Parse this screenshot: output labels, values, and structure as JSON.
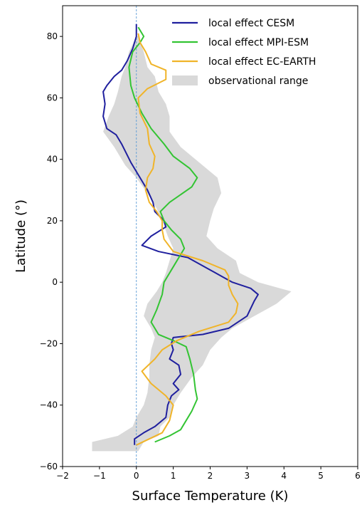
{
  "chart_data": {
    "type": "line",
    "xlabel": "Surface Temperature (K)",
    "ylabel": "Latitude (°)",
    "xlim": [
      -2,
      6
    ],
    "ylim": [
      -60,
      90
    ],
    "xticks": [
      -2,
      -1,
      0,
      1,
      2,
      3,
      4,
      5,
      6
    ],
    "yticks": [
      -60,
      -40,
      -20,
      0,
      20,
      40,
      60,
      80
    ],
    "grid": false,
    "legend_position": "top-right",
    "reference_line": {
      "x": 0,
      "style": "dashed",
      "color": "#5b9bd5"
    },
    "series": [
      {
        "name": "local effect CESM",
        "color": "#1f1f9e",
        "points": [
          [
            -0.05,
            -53
          ],
          [
            -0.05,
            -51
          ],
          [
            0.2,
            -49
          ],
          [
            0.5,
            -47
          ],
          [
            0.8,
            -44
          ],
          [
            0.85,
            -40
          ],
          [
            0.95,
            -37
          ],
          [
            1.15,
            -35
          ],
          [
            1.0,
            -33
          ],
          [
            1.2,
            -30
          ],
          [
            1.15,
            -27
          ],
          [
            0.9,
            -25
          ],
          [
            1.0,
            -22
          ],
          [
            0.95,
            -20
          ],
          [
            1.0,
            -18
          ],
          [
            1.8,
            -17
          ],
          [
            2.5,
            -15
          ],
          [
            3.0,
            -11
          ],
          [
            3.2,
            -6
          ],
          [
            3.3,
            -4
          ],
          [
            3.1,
            -2
          ],
          [
            2.6,
            0
          ],
          [
            2.3,
            2
          ],
          [
            2.0,
            4
          ],
          [
            1.4,
            8
          ],
          [
            0.6,
            10
          ],
          [
            0.15,
            12
          ],
          [
            0.4,
            15
          ],
          [
            0.8,
            18
          ],
          [
            0.75,
            20
          ],
          [
            0.5,
            23
          ],
          [
            0.45,
            26
          ],
          [
            0.3,
            30
          ],
          [
            0.05,
            35
          ],
          [
            -0.15,
            39
          ],
          [
            -0.4,
            45
          ],
          [
            -0.55,
            48
          ],
          [
            -0.8,
            50
          ],
          [
            -0.9,
            54
          ],
          [
            -0.85,
            58
          ],
          [
            -0.9,
            62
          ],
          [
            -0.8,
            64
          ],
          [
            -0.6,
            67
          ],
          [
            -0.4,
            69
          ],
          [
            -0.25,
            72
          ],
          [
            -0.1,
            76
          ],
          [
            0.0,
            80
          ],
          [
            0.0,
            84
          ]
        ]
      },
      {
        "name": "local effect MPI-ESM",
        "color": "#33c433",
        "points": [
          [
            0.5,
            -52
          ],
          [
            0.9,
            -50
          ],
          [
            1.2,
            -48
          ],
          [
            1.35,
            -45
          ],
          [
            1.5,
            -42
          ],
          [
            1.65,
            -38
          ],
          [
            1.6,
            -35
          ],
          [
            1.55,
            -30
          ],
          [
            1.45,
            -25
          ],
          [
            1.35,
            -21
          ],
          [
            1.0,
            -19
          ],
          [
            0.6,
            -17
          ],
          [
            0.4,
            -13
          ],
          [
            0.55,
            -9
          ],
          [
            0.7,
            -4
          ],
          [
            0.75,
            0
          ],
          [
            0.95,
            4
          ],
          [
            1.15,
            8
          ],
          [
            1.3,
            11
          ],
          [
            1.2,
            14
          ],
          [
            0.95,
            17
          ],
          [
            0.75,
            20
          ],
          [
            0.65,
            23
          ],
          [
            0.9,
            26
          ],
          [
            1.5,
            31
          ],
          [
            1.65,
            34
          ],
          [
            1.45,
            37
          ],
          [
            1.0,
            41
          ],
          [
            0.75,
            45
          ],
          [
            0.4,
            50
          ],
          [
            0.15,
            55
          ],
          [
            -0.05,
            60
          ],
          [
            -0.15,
            64
          ],
          [
            -0.2,
            70
          ],
          [
            -0.1,
            75
          ],
          [
            0.1,
            78
          ],
          [
            0.2,
            80
          ],
          [
            0.05,
            83
          ]
        ]
      },
      {
        "name": "local effect EC-EARTH",
        "color": "#f0b429",
        "points": [
          [
            0.0,
            -53
          ],
          [
            0.35,
            -51
          ],
          [
            0.7,
            -49
          ],
          [
            0.9,
            -45
          ],
          [
            1.0,
            -40
          ],
          [
            0.8,
            -37
          ],
          [
            0.4,
            -33
          ],
          [
            0.15,
            -29
          ],
          [
            0.5,
            -25
          ],
          [
            0.7,
            -22
          ],
          [
            1.1,
            -19
          ],
          [
            1.7,
            -16
          ],
          [
            2.5,
            -13
          ],
          [
            2.7,
            -10
          ],
          [
            2.75,
            -7
          ],
          [
            2.6,
            -4
          ],
          [
            2.5,
            -1
          ],
          [
            2.5,
            2
          ],
          [
            2.4,
            4
          ],
          [
            1.8,
            7
          ],
          [
            1.0,
            10
          ],
          [
            0.75,
            14
          ],
          [
            0.7,
            17
          ],
          [
            0.7,
            20
          ],
          [
            0.55,
            23
          ],
          [
            0.35,
            26
          ],
          [
            0.25,
            30
          ],
          [
            0.3,
            34
          ],
          [
            0.45,
            37
          ],
          [
            0.5,
            41
          ],
          [
            0.35,
            45
          ],
          [
            0.3,
            50
          ],
          [
            0.1,
            55
          ],
          [
            0.05,
            60
          ],
          [
            0.3,
            63
          ],
          [
            0.8,
            66
          ],
          [
            0.8,
            69
          ],
          [
            0.4,
            71
          ],
          [
            0.25,
            75
          ],
          [
            0.1,
            78
          ],
          [
            0.05,
            81
          ]
        ]
      },
      {
        "name": "observational range",
        "color": "#d9d9d9",
        "band": [
          [
            -1.2,
            -55,
            0.05
          ],
          [
            -1.2,
            -52,
            0.2
          ],
          [
            -0.5,
            -50,
            0.6
          ],
          [
            -0.1,
            -47,
            0.65
          ],
          [
            0.0,
            -44,
            0.9
          ],
          [
            0.2,
            -40,
            1.0
          ],
          [
            0.3,
            -36,
            1.2
          ],
          [
            0.35,
            -31,
            1.5
          ],
          [
            0.35,
            -27,
            1.8
          ],
          [
            0.4,
            -22,
            2.0
          ],
          [
            0.5,
            -18,
            2.3
          ],
          [
            0.4,
            -15,
            2.6
          ],
          [
            0.2,
            -11,
            3.2
          ],
          [
            0.3,
            -7,
            3.8
          ],
          [
            0.55,
            -3,
            4.2
          ],
          [
            0.7,
            0,
            3.3
          ],
          [
            0.8,
            3,
            2.8
          ],
          [
            0.9,
            7,
            2.7
          ],
          [
            1.0,
            11,
            2.2
          ],
          [
            0.85,
            15,
            1.9
          ],
          [
            0.7,
            20,
            2.0
          ],
          [
            0.55,
            24,
            2.1
          ],
          [
            0.3,
            29,
            2.3
          ],
          [
            0.0,
            34,
            2.2
          ],
          [
            -0.3,
            38,
            1.8
          ],
          [
            -0.6,
            44,
            1.2
          ],
          [
            -0.9,
            49,
            0.9
          ],
          [
            -0.75,
            54,
            0.9
          ],
          [
            -0.6,
            58,
            0.8
          ],
          [
            -0.5,
            62,
            0.6
          ],
          [
            -0.4,
            67,
            0.5
          ],
          [
            -0.3,
            70,
            0.3
          ],
          [
            -0.2,
            75,
            0.2
          ],
          [
            0.0,
            80,
            0.05
          ]
        ]
      }
    ]
  },
  "colors": {
    "axis": "#000000",
    "zero_line": "#5b9bd5",
    "band": "#d9d9d9"
  }
}
